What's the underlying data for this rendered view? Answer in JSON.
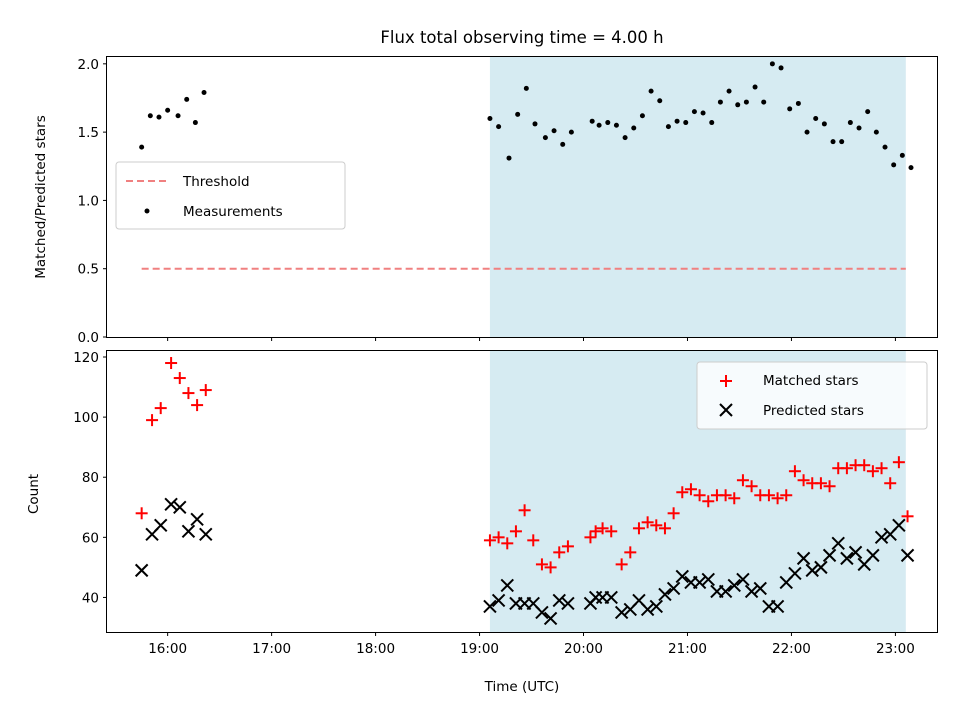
{
  "colors": {
    "shade": "#add8e6",
    "threshold": "#f08080",
    "matched": "#ff0000",
    "predicted": "#000000",
    "measurements": "#000000"
  },
  "chart_data": [
    {
      "type": "scatter",
      "title": "Flux total observing time = 4.00 h",
      "xlabel": "",
      "ylabel": "Matched/Predicted stars",
      "xlim": [
        "15:25",
        "23:24"
      ],
      "ylim": [
        0,
        2.05
      ],
      "yticks": [
        "0.0",
        "0.5",
        "1.0",
        "1.5",
        "2.0"
      ],
      "shaded_span": [
        "19:06",
        "23:06"
      ],
      "legend": {
        "placement": "center-left",
        "entries": [
          "Threshold",
          "Measurements"
        ]
      },
      "threshold": {
        "name": "Threshold",
        "y": 0.5,
        "x": [
          "15:45",
          "23:06"
        ]
      },
      "series": [
        {
          "name": "Measurements",
          "points": [
            [
              "15:45",
              1.39
            ],
            [
              "15:50",
              1.62
            ],
            [
              "15:55",
              1.61
            ],
            [
              "16:00",
              1.66
            ],
            [
              "16:06",
              1.62
            ],
            [
              "16:11",
              1.74
            ],
            [
              "16:16",
              1.57
            ],
            [
              "16:21",
              1.79
            ],
            [
              "19:06",
              1.6
            ],
            [
              "19:11",
              1.54
            ],
            [
              "19:17",
              1.31
            ],
            [
              "19:22",
              1.63
            ],
            [
              "19:27",
              1.82
            ],
            [
              "19:32",
              1.56
            ],
            [
              "19:38",
              1.46
            ],
            [
              "19:43",
              1.51
            ],
            [
              "19:48",
              1.41
            ],
            [
              "19:53",
              1.5
            ],
            [
              "20:05",
              1.58
            ],
            [
              "20:09",
              1.55
            ],
            [
              "20:14",
              1.57
            ],
            [
              "20:19",
              1.55
            ],
            [
              "20:24",
              1.46
            ],
            [
              "20:29",
              1.53
            ],
            [
              "20:34",
              1.62
            ],
            [
              "20:39",
              1.8
            ],
            [
              "20:44",
              1.73
            ],
            [
              "20:49",
              1.54
            ],
            [
              "20:54",
              1.58
            ],
            [
              "20:59",
              1.57
            ],
            [
              "21:04",
              1.65
            ],
            [
              "21:09",
              1.64
            ],
            [
              "21:14",
              1.57
            ],
            [
              "21:19",
              1.72
            ],
            [
              "21:24",
              1.8
            ],
            [
              "21:29",
              1.7
            ],
            [
              "21:34",
              1.72
            ],
            [
              "21:39",
              1.83
            ],
            [
              "21:44",
              1.72
            ],
            [
              "21:49",
              2.0
            ],
            [
              "21:54",
              1.97
            ],
            [
              "21:59",
              1.67
            ],
            [
              "22:04",
              1.71
            ],
            [
              "22:09",
              1.5
            ],
            [
              "22:14",
              1.6
            ],
            [
              "22:19",
              1.56
            ],
            [
              "22:24",
              1.43
            ],
            [
              "22:29",
              1.43
            ],
            [
              "22:34",
              1.57
            ],
            [
              "22:39",
              1.53
            ],
            [
              "22:44",
              1.65
            ],
            [
              "22:49",
              1.5
            ],
            [
              "22:54",
              1.39
            ],
            [
              "22:59",
              1.26
            ],
            [
              "23:04",
              1.33
            ],
            [
              "23:09",
              1.24
            ]
          ]
        }
      ]
    },
    {
      "type": "scatter",
      "title": "",
      "xlabel": "Time (UTC)",
      "ylabel": "Count",
      "xlim": [
        "15:25",
        "23:24"
      ],
      "ylim": [
        28.5,
        122
      ],
      "yticks": [
        "40",
        "60",
        "80",
        "100",
        "120"
      ],
      "xticks": [
        "16:00",
        "17:00",
        "18:00",
        "19:00",
        "20:00",
        "21:00",
        "22:00",
        "23:00"
      ],
      "shaded_span": [
        "19:06",
        "23:06"
      ],
      "legend": {
        "placement": "top-right",
        "entries": [
          "Matched stars",
          "Predicted stars"
        ]
      },
      "series": [
        {
          "name": "Matched stars",
          "marker": "plus",
          "points": [
            [
              "15:45",
              68
            ],
            [
              "15:51",
              99
            ],
            [
              "15:56",
              103
            ],
            [
              "16:02",
              118
            ],
            [
              "16:07",
              113
            ],
            [
              "16:12",
              108
            ],
            [
              "16:17",
              104
            ],
            [
              "16:22",
              109
            ],
            [
              "19:06",
              59
            ],
            [
              "19:11",
              60
            ],
            [
              "19:16",
              58
            ],
            [
              "19:21",
              62
            ],
            [
              "19:26",
              69
            ],
            [
              "19:31",
              59
            ],
            [
              "19:36",
              51
            ],
            [
              "19:41",
              50
            ],
            [
              "19:46",
              55
            ],
            [
              "19:51",
              57
            ],
            [
              "20:04",
              60
            ],
            [
              "20:07",
              62
            ],
            [
              "20:11",
              63
            ],
            [
              "20:16",
              62
            ],
            [
              "20:22",
              51
            ],
            [
              "20:27",
              55
            ],
            [
              "20:32",
              63
            ],
            [
              "20:37",
              65
            ],
            [
              "20:42",
              64
            ],
            [
              "20:47",
              63
            ],
            [
              "20:52",
              68
            ],
            [
              "20:57",
              75
            ],
            [
              "21:02",
              76
            ],
            [
              "21:07",
              74
            ],
            [
              "21:12",
              72
            ],
            [
              "21:17",
              74
            ],
            [
              "21:22",
              74
            ],
            [
              "21:27",
              73
            ],
            [
              "21:32",
              79
            ],
            [
              "21:37",
              77
            ],
            [
              "21:42",
              74
            ],
            [
              "21:47",
              74
            ],
            [
              "21:52",
              73
            ],
            [
              "21:57",
              74
            ],
            [
              "22:02",
              82
            ],
            [
              "22:07",
              79
            ],
            [
              "22:12",
              78
            ],
            [
              "22:17",
              78
            ],
            [
              "22:22",
              77
            ],
            [
              "22:27",
              83
            ],
            [
              "22:32",
              83
            ],
            [
              "22:37",
              84
            ],
            [
              "22:42",
              84
            ],
            [
              "22:47",
              82
            ],
            [
              "22:52",
              83
            ],
            [
              "22:57",
              78
            ],
            [
              "23:02",
              85
            ],
            [
              "23:07",
              67
            ]
          ]
        },
        {
          "name": "Predicted stars",
          "marker": "x",
          "points": [
            [
              "15:45",
              49
            ],
            [
              "15:51",
              61
            ],
            [
              "15:56",
              64
            ],
            [
              "16:02",
              71
            ],
            [
              "16:07",
              70
            ],
            [
              "16:12",
              62
            ],
            [
              "16:17",
              66
            ],
            [
              "16:22",
              61
            ],
            [
              "19:06",
              37
            ],
            [
              "19:11",
              39
            ],
            [
              "19:16",
              44
            ],
            [
              "19:21",
              38
            ],
            [
              "19:26",
              38
            ],
            [
              "19:31",
              38
            ],
            [
              "19:36",
              35
            ],
            [
              "19:41",
              33
            ],
            [
              "19:46",
              39
            ],
            [
              "19:51",
              38
            ],
            [
              "20:04",
              38
            ],
            [
              "20:07",
              40
            ],
            [
              "20:11",
              40
            ],
            [
              "20:16",
              40
            ],
            [
              "20:22",
              35
            ],
            [
              "20:27",
              36
            ],
            [
              "20:32",
              39
            ],
            [
              "20:37",
              36
            ],
            [
              "20:42",
              37
            ],
            [
              "20:47",
              41
            ],
            [
              "20:52",
              43
            ],
            [
              "20:57",
              47
            ],
            [
              "21:02",
              45
            ],
            [
              "21:07",
              45
            ],
            [
              "21:12",
              46
            ],
            [
              "21:17",
              42
            ],
            [
              "21:22",
              42
            ],
            [
              "21:27",
              44
            ],
            [
              "21:32",
              46
            ],
            [
              "21:37",
              42
            ],
            [
              "21:42",
              43
            ],
            [
              "21:47",
              37
            ],
            [
              "21:52",
              37
            ],
            [
              "21:57",
              45
            ],
            [
              "22:02",
              48
            ],
            [
              "22:07",
              53
            ],
            [
              "22:12",
              49
            ],
            [
              "22:17",
              50
            ],
            [
              "22:22",
              54
            ],
            [
              "22:27",
              58
            ],
            [
              "22:32",
              53
            ],
            [
              "22:37",
              55
            ],
            [
              "22:42",
              51
            ],
            [
              "22:47",
              54
            ],
            [
              "22:52",
              60
            ],
            [
              "22:57",
              61
            ],
            [
              "23:02",
              64
            ],
            [
              "23:07",
              54
            ]
          ]
        }
      ]
    }
  ]
}
